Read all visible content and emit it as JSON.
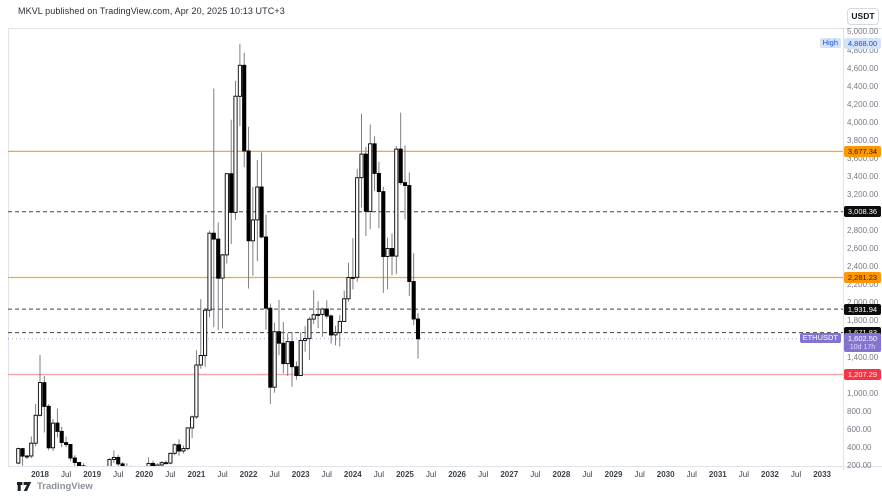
{
  "header": {
    "title": "MKVL published on TradingView.com, Apr 20, 2025 10:13 UTC+3"
  },
  "price_axis": {
    "currency_button": "USDT",
    "min": 200,
    "max": 5000,
    "step": 200
  },
  "time_axis": {
    "labels": [
      "2018",
      "Jul",
      "2019",
      "Jul",
      "2020",
      "Jul",
      "2021",
      "Jul",
      "2022",
      "Jul",
      "2023",
      "Jul",
      "2024",
      "Jul",
      "2025",
      "Jul",
      "2026",
      "Jul",
      "2027",
      "Jul",
      "2028",
      "Jul",
      "2029",
      "Jul",
      "2030",
      "Jul",
      "2031",
      "Jul",
      "2032",
      "Jul",
      "2033"
    ]
  },
  "footer": {
    "brand": "TradingView"
  },
  "chart_data": {
    "type": "candlestick",
    "symbol": "ETHUSDT",
    "title": "MKVL published on TradingView.com, Apr 20, 2025 10:13 UTC+3",
    "ylabel": "USDT",
    "ylim": [
      200,
      5000
    ],
    "grid": false,
    "current_price": {
      "label": "1,602.50",
      "countdown": "10d 17h",
      "badge": "ETHUSDT"
    },
    "high_label": {
      "label": "4,868.00",
      "badge": "High"
    },
    "colors": {
      "up_body": "#ffffff",
      "down_body": "#000000",
      "candle_border": "#000000",
      "wick": "#6f7076",
      "orange": "#f8a63b",
      "orange_box": "#ff9800",
      "dashed": "#42454d",
      "red_line": "#f5a9a9",
      "red_box": "#f23645",
      "purple": "#8573d1",
      "purple_line": "#aba0dc",
      "blue_bg": "#d5e3f7",
      "blue_fg": "#1c4fd8",
      "frame": "#e0e3eb"
    },
    "levels": [
      {
        "price": 4868.0,
        "label": "4,868.00",
        "badge": "High",
        "line_style": "none",
        "line_color": "",
        "box_bg": "#d5e3f7",
        "box_fg": "#1c4fd8"
      },
      {
        "price": 3677.34,
        "label": "3,677.34",
        "line_style": "solid",
        "line_color": "#f8a63b",
        "box_bg": "#ff9800",
        "box_fg": "#2b1c00"
      },
      {
        "price": 3008.36,
        "label": "3,008.36",
        "line_style": "dashed",
        "line_color": "#42454d",
        "box_bg": "#0c0c0c",
        "box_fg": "#ffffff"
      },
      {
        "price": 2281.23,
        "label": "2,281.23",
        "line_style": "solid",
        "line_color": "#f8a63b",
        "box_bg": "#ff9800",
        "box_fg": "#2b1c00"
      },
      {
        "price": 1931.94,
        "label": "1,931.94",
        "line_style": "dashed",
        "line_color": "#42454d",
        "box_bg": "#0c0c0c",
        "box_fg": "#ffffff"
      },
      {
        "price": 1671.83,
        "label": "1,671.83",
        "line_style": "dashed",
        "line_color": "#42454d",
        "box_bg": "#0c0c0c",
        "box_fg": "#ffffff"
      },
      {
        "price": 1602.5,
        "label": "1,602.50",
        "sub": "10d 17h",
        "badge": "ETHUSDT",
        "line_style": "dotted",
        "line_color": "#aba0dc",
        "box_bg": "#8573d1",
        "box_fg": "#ffffff",
        "sub_fg": "#e2dbf8"
      },
      {
        "price": 1207.29,
        "label": "1,207.29",
        "line_style": "solid",
        "line_color": "#f5a9a9",
        "box_bg": "#f23645",
        "box_fg": "#fff0f0"
      }
    ],
    "candles": [
      [
        "2017-08",
        226,
        398,
        216,
        387
      ],
      [
        "2017-09",
        387,
        395,
        198,
        304
      ],
      [
        "2017-10",
        304,
        315,
        272,
        305
      ],
      [
        "2017-11",
        305,
        522,
        280,
        447
      ],
      [
        "2017-12",
        447,
        881,
        410,
        756
      ],
      [
        "2018-01",
        756,
        1424,
        742,
        1118
      ],
      [
        "2018-02",
        1118,
        1190,
        565,
        855
      ],
      [
        "2018-03",
        855,
        880,
        368,
        396
      ],
      [
        "2018-04",
        396,
        715,
        361,
        669
      ],
      [
        "2018-05",
        669,
        830,
        510,
        577
      ],
      [
        "2018-06",
        577,
        630,
        404,
        454
      ],
      [
        "2018-07",
        454,
        520,
        403,
        433
      ],
      [
        "2018-08",
        433,
        435,
        247,
        283
      ],
      [
        "2018-09",
        283,
        314,
        167,
        233
      ],
      [
        "2018-10",
        233,
        238,
        181,
        197
      ],
      [
        "2018-11",
        197,
        226,
        102,
        113
      ],
      [
        "2018-12",
        113,
        157,
        82,
        133
      ],
      [
        "2019-01",
        133,
        161,
        103,
        107
      ],
      [
        "2019-02",
        107,
        166,
        102,
        137
      ],
      [
        "2019-03",
        137,
        145,
        125,
        141
      ],
      [
        "2019-04",
        141,
        183,
        138,
        162
      ],
      [
        "2019-05",
        162,
        281,
        159,
        268
      ],
      [
        "2019-06",
        268,
        366,
        226,
        290
      ],
      [
        "2019-07",
        290,
        319,
        192,
        218
      ],
      [
        "2019-08",
        218,
        239,
        163,
        172
      ],
      [
        "2019-09",
        172,
        224,
        152,
        180
      ],
      [
        "2019-10",
        180,
        199,
        151,
        183
      ],
      [
        "2019-11",
        183,
        191,
        140,
        154
      ],
      [
        "2019-12",
        154,
        158,
        116,
        130
      ],
      [
        "2020-01",
        130,
        188,
        126,
        180
      ],
      [
        "2020-02",
        180,
        289,
        176,
        223
      ],
      [
        "2020-03",
        223,
        253,
        86,
        133
      ],
      [
        "2020-04",
        133,
        227,
        131,
        206
      ],
      [
        "2020-05",
        206,
        248,
        190,
        231
      ],
      [
        "2020-06",
        231,
        254,
        216,
        226
      ],
      [
        "2020-07",
        226,
        342,
        216,
        335
      ],
      [
        "2020-08",
        335,
        447,
        313,
        429
      ],
      [
        "2020-09",
        429,
        490,
        308,
        360
      ],
      [
        "2020-10",
        360,
        421,
        333,
        387
      ],
      [
        "2020-11",
        387,
        622,
        368,
        616
      ],
      [
        "2020-12",
        616,
        755,
        503,
        738
      ],
      [
        "2021-01",
        738,
        1477,
        716,
        1313
      ],
      [
        "2021-02",
        1313,
        2042,
        1272,
        1418
      ],
      [
        "2021-03",
        1418,
        1944,
        1293,
        1919
      ],
      [
        "2021-04",
        1919,
        2798,
        1841,
        2772
      ],
      [
        "2021-05",
        2772,
        4374,
        1730,
        2707
      ],
      [
        "2021-06",
        2707,
        2891,
        1700,
        2274
      ],
      [
        "2021-07",
        2274,
        2543,
        1718,
        2531
      ],
      [
        "2021-08",
        2531,
        3380,
        2438,
        3430
      ],
      [
        "2021-09",
        3430,
        4028,
        2652,
        3001
      ],
      [
        "2021-10",
        3001,
        4460,
        2917,
        4288
      ],
      [
        "2021-11",
        4288,
        4868,
        3959,
        4631
      ],
      [
        "2021-12",
        4631,
        4770,
        3503,
        3683
      ],
      [
        "2022-01",
        3683,
        3951,
        2160,
        2688
      ],
      [
        "2022-02",
        2688,
        3284,
        2300,
        2919
      ],
      [
        "2022-03",
        2919,
        3582,
        2463,
        3283
      ],
      [
        "2022-04",
        3283,
        3666,
        2716,
        2730
      ],
      [
        "2022-05",
        2730,
        2977,
        1702,
        1942
      ],
      [
        "2022-06",
        1942,
        1993,
        881,
        1067
      ],
      [
        "2022-07",
        1067,
        1781,
        1006,
        1681
      ],
      [
        "2022-08",
        1681,
        2031,
        1421,
        1554
      ],
      [
        "2022-09",
        1554,
        1789,
        1220,
        1328
      ],
      [
        "2022-10",
        1328,
        1663,
        1190,
        1572
      ],
      [
        "2022-11",
        1572,
        1680,
        1072,
        1294
      ],
      [
        "2022-12",
        1294,
        1352,
        1150,
        1196
      ],
      [
        "2023-01",
        1196,
        1674,
        1190,
        1585
      ],
      [
        "2023-02",
        1585,
        1742,
        1461,
        1605
      ],
      [
        "2023-03",
        1605,
        1846,
        1368,
        1820
      ],
      [
        "2023-04",
        1820,
        2141,
        1767,
        1869
      ],
      [
        "2023-05",
        1869,
        2019,
        1721,
        1873
      ],
      [
        "2023-06",
        1873,
        1946,
        1626,
        1933
      ],
      [
        "2023-07",
        1933,
        2029,
        1825,
        1855
      ],
      [
        "2023-08",
        1855,
        1875,
        1550,
        1645
      ],
      [
        "2023-09",
        1645,
        1746,
        1531,
        1671
      ],
      [
        "2023-10",
        1671,
        1865,
        1519,
        1795
      ],
      [
        "2023-11",
        1795,
        2135,
        1793,
        2045
      ],
      [
        "2023-12",
        2045,
        2445,
        2015,
        2281
      ],
      [
        "2024-01",
        2281,
        2717,
        2150,
        2283
      ],
      [
        "2024-02",
        2283,
        3484,
        2235,
        3386
      ],
      [
        "2024-03",
        3386,
        4093,
        3056,
        3647
      ],
      [
        "2024-04",
        3647,
        3728,
        2741,
        3014
      ],
      [
        "2024-05",
        3014,
        3976,
        2817,
        3762
      ],
      [
        "2024-06",
        3762,
        3846,
        3240,
        3434
      ],
      [
        "2024-07",
        3434,
        3562,
        2826,
        3232
      ],
      [
        "2024-08",
        3232,
        3284,
        2111,
        2513
      ],
      [
        "2024-09",
        2513,
        2723,
        2151,
        2602
      ],
      [
        "2024-10",
        2602,
        2768,
        2306,
        2518
      ],
      [
        "2024-11",
        2518,
        3736,
        2317,
        3703
      ],
      [
        "2024-12",
        3703,
        4107,
        3306,
        3332
      ],
      [
        "2025-01",
        3332,
        3745,
        2924,
        3300
      ],
      [
        "2025-02",
        3300,
        3444,
        2077,
        2237
      ],
      [
        "2025-03",
        2237,
        2551,
        1754,
        1822
      ],
      [
        "2025-04",
        1822,
        1888,
        1385,
        1602.5
      ]
    ]
  }
}
